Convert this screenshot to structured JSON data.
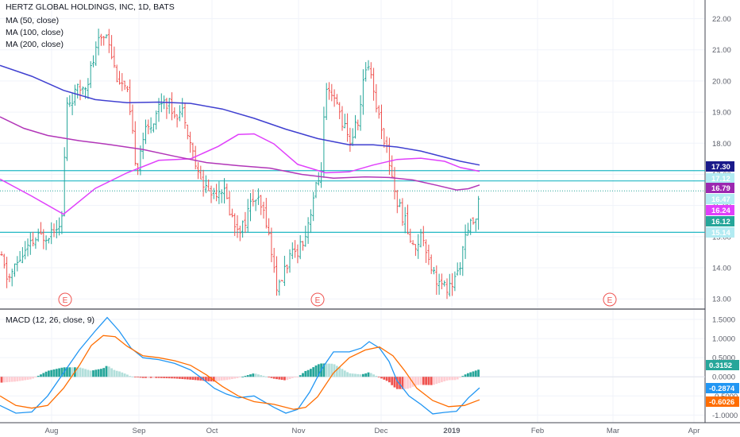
{
  "header": {
    "title": "HERTZ GLOBAL HOLDINGS, INC, 1D, BATS",
    "ma50": "MA (50, close)",
    "ma100": "MA (100, close)",
    "ma200": "MA (200, close)",
    "macd": "MACD (12, 26, close, 9)"
  },
  "colors": {
    "up": "#26a69a",
    "down": "#ef5350",
    "ma50": "#e040fb",
    "ma100": "#b236b8",
    "ma200": "#3f3fd0",
    "hline": "#22b8c4",
    "macd": "#2196f3",
    "signal": "#ff6d00",
    "hist_up_strong": "#26a69a",
    "hist_up_weak": "#b2dfdb",
    "hist_dn_strong": "#ef5350",
    "hist_dn_weak": "#ffcdd2"
  },
  "chart_data": [
    {
      "type": "candlestick",
      "title": "HERTZ GLOBAL HOLDINGS, INC, 1D, BATS",
      "ylim": [
        12.7,
        22.6
      ],
      "x_ticks": [
        "Aug",
        "Sep",
        "Oct",
        "Nov",
        "Dec",
        "2019",
        "Feb",
        "Mar",
        "Apr"
      ],
      "y_ticks": [
        "13.00",
        "14.00",
        "15.00",
        "16.00",
        "17.00",
        "18.00",
        "19.00",
        "20.00",
        "21.00",
        "22.00"
      ],
      "price_path": [
        [
          0,
          14.4
        ],
        [
          10,
          13.6
        ],
        [
          25,
          14.3
        ],
        [
          45,
          14.9
        ],
        [
          60,
          15.1
        ],
        [
          78,
          15.6
        ],
        [
          84,
          19.2
        ],
        [
          95,
          19.6
        ],
        [
          110,
          20.0
        ],
        [
          125,
          21.3
        ],
        [
          135,
          21.6
        ],
        [
          145,
          20.3
        ],
        [
          160,
          19.6
        ],
        [
          172,
          17.2
        ],
        [
          180,
          18.2
        ],
        [
          190,
          18.6
        ],
        [
          205,
          19.5
        ],
        [
          220,
          19.0
        ],
        [
          232,
          19.0
        ],
        [
          240,
          18.0
        ],
        [
          250,
          16.9
        ],
        [
          265,
          16.4
        ],
        [
          280,
          16.6
        ],
        [
          295,
          15.4
        ],
        [
          305,
          15.3
        ],
        [
          320,
          16.3
        ],
        [
          335,
          15.6
        ],
        [
          350,
          13.2
        ],
        [
          360,
          14.1
        ],
        [
          375,
          14.6
        ],
        [
          385,
          15.1
        ],
        [
          395,
          16.3
        ],
        [
          404,
          17.0
        ],
        [
          410,
          19.6
        ],
        [
          425,
          19.2
        ],
        [
          440,
          18.0
        ],
        [
          452,
          18.8
        ],
        [
          460,
          20.4
        ],
        [
          466,
          20.6
        ],
        [
          472,
          19.4
        ],
        [
          482,
          18.4
        ],
        [
          492,
          17.2
        ],
        [
          500,
          16.1
        ],
        [
          510,
          15.5
        ],
        [
          520,
          14.6
        ],
        [
          532,
          15.1
        ],
        [
          545,
          13.9
        ],
        [
          555,
          13.4
        ],
        [
          565,
          13.3
        ],
        [
          575,
          13.7
        ],
        [
          585,
          14.8
        ],
        [
          595,
          15.5
        ],
        [
          604,
          16.1
        ]
      ],
      "series": [
        {
          "name": "MA (50, close)",
          "points": [
            [
              0,
              16.85
            ],
            [
              40,
              16.3
            ],
            [
              80,
              15.72
            ],
            [
              120,
              16.55
            ],
            [
              160,
              17.05
            ],
            [
              200,
              17.45
            ],
            [
              240,
              17.5
            ],
            [
              275,
              17.9
            ],
            [
              300,
              18.28
            ],
            [
              320,
              18.3
            ],
            [
              345,
              17.98
            ],
            [
              375,
              17.32
            ],
            [
              410,
              17.05
            ],
            [
              440,
              17.08
            ],
            [
              470,
              17.3
            ],
            [
              500,
              17.48
            ],
            [
              530,
              17.52
            ],
            [
              560,
              17.42
            ],
            [
              580,
              17.22
            ],
            [
              604,
              17.1
            ]
          ]
        },
        {
          "name": "MA (100, close)",
          "points": [
            [
              0,
              18.85
            ],
            [
              30,
              18.48
            ],
            [
              60,
              18.25
            ],
            [
              100,
              18.08
            ],
            [
              140,
              17.95
            ],
            [
              180,
              17.8
            ],
            [
              220,
              17.58
            ],
            [
              260,
              17.38
            ],
            [
              300,
              17.28
            ],
            [
              340,
              17.2
            ],
            [
              380,
              17.0
            ],
            [
              420,
              16.88
            ],
            [
              460,
              16.92
            ],
            [
              490,
              16.9
            ],
            [
              520,
              16.82
            ],
            [
              550,
              16.65
            ],
            [
              575,
              16.5
            ],
            [
              590,
              16.54
            ],
            [
              604,
              16.66
            ]
          ]
        },
        {
          "name": "MA (200, close)",
          "points": [
            [
              0,
              20.5
            ],
            [
              40,
              20.15
            ],
            [
              80,
              19.7
            ],
            [
              120,
              19.4
            ],
            [
              160,
              19.3
            ],
            [
              200,
              19.32
            ],
            [
              240,
              19.28
            ],
            [
              280,
              19.1
            ],
            [
              320,
              18.8
            ],
            [
              360,
              18.45
            ],
            [
              400,
              18.15
            ],
            [
              440,
              17.95
            ],
            [
              470,
              17.95
            ],
            [
              500,
              17.88
            ],
            [
              530,
              17.75
            ],
            [
              560,
              17.55
            ],
            [
              580,
              17.42
            ],
            [
              604,
              17.3
            ]
          ]
        }
      ],
      "horizontal_levels": [
        17.12,
        16.79,
        15.14
      ],
      "dotted_level": 16.47,
      "earnings_markers": [
        {
          "x": 82,
          "label": "E"
        },
        {
          "x": 400,
          "label": "E"
        },
        {
          "x": 768,
          "label": "E"
        }
      ],
      "price_tags": [
        {
          "value": "17.30",
          "color": "#1a1a8a",
          "text_color": "#ffffff"
        },
        {
          "value": "17.12",
          "color": "#b2ebf2",
          "text_color": "#131722"
        },
        {
          "value": "16.79",
          "color": "#9c27b0",
          "text_color": "#ffffff"
        },
        {
          "value": "16.47",
          "color": "#b2ebf2",
          "text_color": "#131722"
        },
        {
          "value": "16.24",
          "color": "#e040fb",
          "text_color": "#ffffff"
        },
        {
          "value": "16.12",
          "color": "#26a69a",
          "text_color": "#ffffff"
        },
        {
          "value": "15.14",
          "color": "#b2ebf2",
          "text_color": "#131722"
        }
      ]
    },
    {
      "type": "line+histogram",
      "title": "MACD (12, 26, close, 9)",
      "ylim": [
        -1.2,
        1.75
      ],
      "y_ticks": [
        "1.5000",
        "1.0000",
        "0.5000",
        "0.0000",
        "-0.5000",
        "-1.0000"
      ],
      "macd_line": [
        [
          0,
          -0.75
        ],
        [
          20,
          -0.95
        ],
        [
          40,
          -0.92
        ],
        [
          60,
          -0.5
        ],
        [
          80,
          0.1
        ],
        [
          100,
          0.7
        ],
        [
          120,
          1.2
        ],
        [
          135,
          1.55
        ],
        [
          150,
          1.2
        ],
        [
          165,
          0.75
        ],
        [
          180,
          0.5
        ],
        [
          200,
          0.45
        ],
        [
          220,
          0.35
        ],
        [
          240,
          0.18
        ],
        [
          255,
          -0.05
        ],
        [
          270,
          -0.3
        ],
        [
          285,
          -0.45
        ],
        [
          300,
          -0.55
        ],
        [
          320,
          -0.5
        ],
        [
          345,
          -0.8
        ],
        [
          360,
          -0.95
        ],
        [
          375,
          -0.85
        ],
        [
          390,
          -0.4
        ],
        [
          405,
          0.2
        ],
        [
          420,
          0.65
        ],
        [
          440,
          0.65
        ],
        [
          455,
          0.75
        ],
        [
          465,
          0.92
        ],
        [
          478,
          0.75
        ],
        [
          490,
          0.4
        ],
        [
          500,
          -0.1
        ],
        [
          515,
          -0.5
        ],
        [
          530,
          -0.72
        ],
        [
          545,
          -0.97
        ],
        [
          560,
          -0.93
        ],
        [
          575,
          -0.9
        ],
        [
          590,
          -0.55
        ],
        [
          604,
          -0.2874
        ]
      ],
      "signal_line": [
        [
          0,
          -0.5
        ],
        [
          20,
          -0.75
        ],
        [
          40,
          -0.82
        ],
        [
          60,
          -0.75
        ],
        [
          80,
          -0.3
        ],
        [
          100,
          0.3
        ],
        [
          115,
          0.82
        ],
        [
          130,
          1.08
        ],
        [
          145,
          1.05
        ],
        [
          160,
          0.8
        ],
        [
          180,
          0.55
        ],
        [
          200,
          0.5
        ],
        [
          220,
          0.42
        ],
        [
          240,
          0.3
        ],
        [
          260,
          0.05
        ],
        [
          280,
          -0.25
        ],
        [
          300,
          -0.5
        ],
        [
          320,
          -0.65
        ],
        [
          345,
          -0.72
        ],
        [
          370,
          -0.85
        ],
        [
          385,
          -0.8
        ],
        [
          400,
          -0.52
        ],
        [
          420,
          0.1
        ],
        [
          440,
          0.5
        ],
        [
          460,
          0.7
        ],
        [
          478,
          0.78
        ],
        [
          495,
          0.55
        ],
        [
          510,
          0.15
        ],
        [
          525,
          -0.3
        ],
        [
          545,
          -0.62
        ],
        [
          565,
          -0.78
        ],
        [
          585,
          -0.75
        ],
        [
          604,
          -0.6026
        ]
      ],
      "price_tags": [
        {
          "value": "0.3152",
          "color": "#26a69a",
          "text_color": "#ffffff"
        },
        {
          "value": "-0.2874",
          "color": "#2196f3",
          "text_color": "#ffffff"
        },
        {
          "value": "-0.6026",
          "color": "#ff6d00",
          "text_color": "#ffffff"
        }
      ]
    }
  ]
}
